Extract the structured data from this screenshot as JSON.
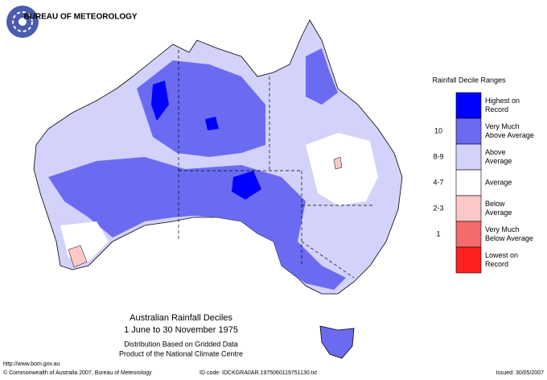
{
  "header": {
    "agency": "BUREAU OF METEOROLOGY"
  },
  "legend": {
    "title": "Rainfall Decile Ranges",
    "items": [
      {
        "decile": null,
        "label": "Highest on Record",
        "color": "#0000ff"
      },
      {
        "decile": "10",
        "label": "Very Much Above Average",
        "color": "#6b6bf2"
      },
      {
        "decile": "8-9",
        "label": "Above Average",
        "color": "#d2d2fa"
      },
      {
        "decile": "4-7",
        "label": "Average",
        "color": "#ffffff"
      },
      {
        "decile": "2-3",
        "label": "Below Average",
        "color": "#fbc8c8"
      },
      {
        "decile": "1",
        "label": "Very Much Below Average",
        "color": "#f56a6a"
      },
      {
        "decile": null,
        "label": "Lowest on Record",
        "color": "#ff2020"
      }
    ]
  },
  "caption": {
    "title": "Australian Rainfall Deciles",
    "period": "1 June to 30 November 1975",
    "note1": "Distribution Based on Gridded Data",
    "note2": "Product of the National Climate Centre"
  },
  "footer": {
    "url": "http://www.bom.gov.au",
    "copyright": "© Commonwealth of Australia 2007, Bureau of Meteorology",
    "id": "ID code: IDCKGRA0AR.1975060119751130.txt",
    "issued": "Issued: 30/05/2007"
  }
}
